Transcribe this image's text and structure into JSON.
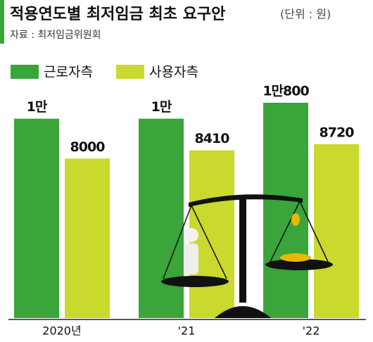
{
  "chart_data": {
    "type": "bar",
    "title": "적용연도별 최저임금 최초 요구안",
    "subtitle": "(단위 : 원)",
    "source": "자료 : 최저임금위원회",
    "categories": [
      "2020년",
      "'21",
      "'22"
    ],
    "series": [
      {
        "name": "근로자측",
        "color": "#3aa53a",
        "values": [
          10000,
          10000,
          10800
        ],
        "value_labels": [
          "1만",
          "1만",
          "1만800"
        ]
      },
      {
        "name": "사용자측",
        "color": "#c9d92e",
        "values": [
          8000,
          8410,
          8720
        ]
      }
    ]
  }
}
